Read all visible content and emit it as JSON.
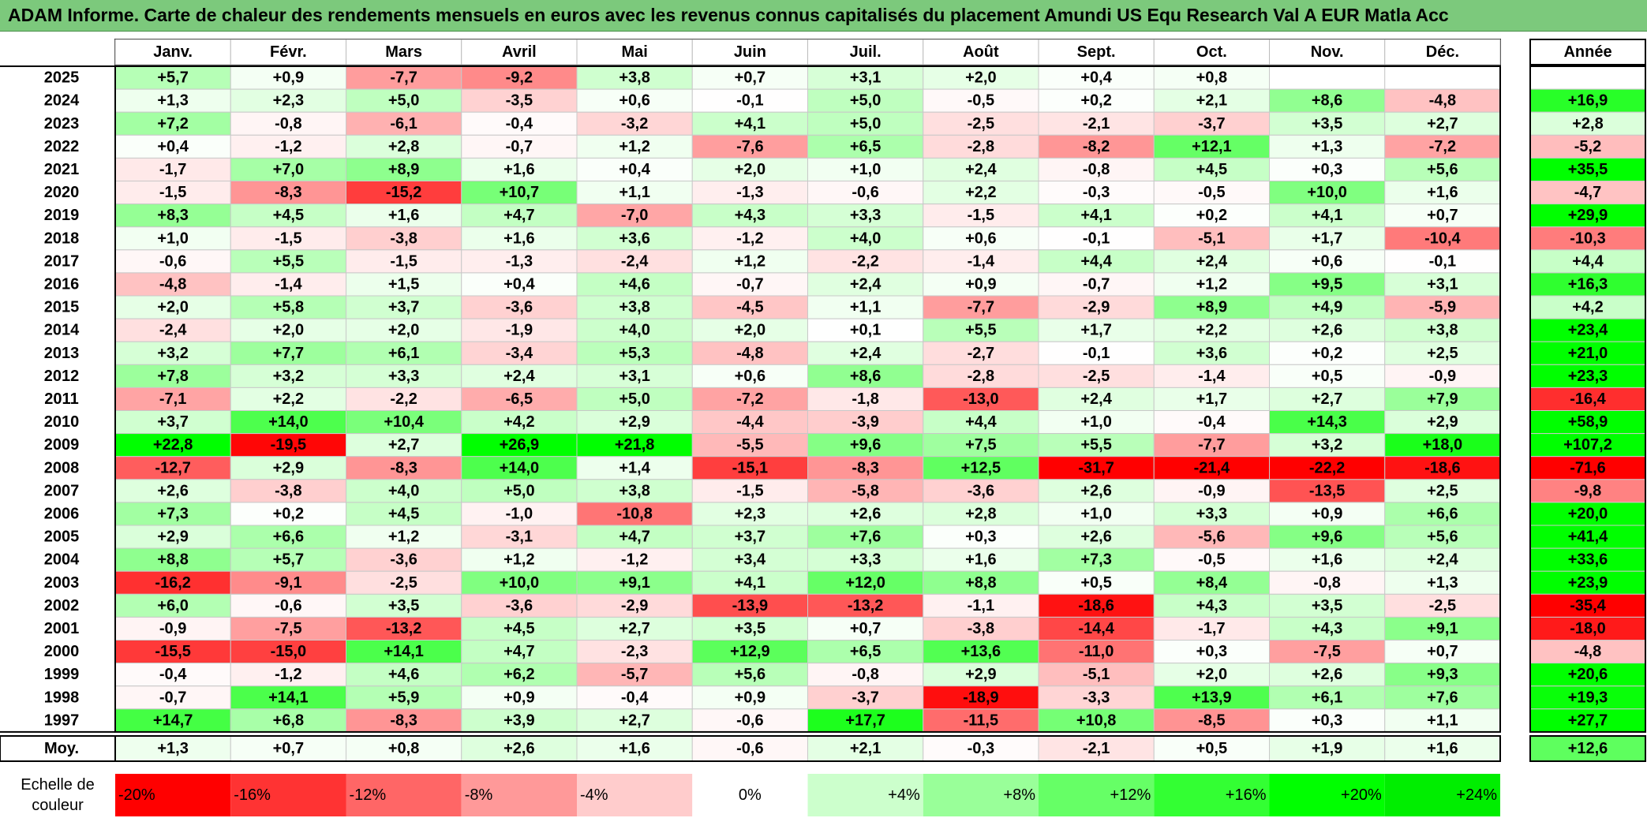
{
  "title": "ADAM Informe. Carte de chaleur des rendements mensuels en euros avec les revenus connus capitalisés du placement Amundi US Equ Research Val A EUR Matla Acc",
  "chart_data": {
    "type": "heatmap",
    "months": [
      "Janv.",
      "Févr.",
      "Mars",
      "Avril",
      "Mai",
      "Juin",
      "Juil.",
      "Août",
      "Sept.",
      "Oct.",
      "Nov.",
      "Déc."
    ],
    "year_header": "Année",
    "rows": [
      {
        "year": "2025",
        "values": [
          "+5,7",
          "+0,9",
          "-7,7",
          "-9,2",
          "+3,8",
          "+0,7",
          "+3,1",
          "+2,0",
          "+0,4",
          "+0,8",
          "",
          ""
        ],
        "annual": ""
      },
      {
        "year": "2024",
        "values": [
          "+1,3",
          "+2,3",
          "+5,0",
          "-3,5",
          "+0,6",
          "-0,1",
          "+5,0",
          "-0,5",
          "+0,2",
          "+2,1",
          "+8,6",
          "-4,8"
        ],
        "annual": "+16,9"
      },
      {
        "year": "2023",
        "values": [
          "+7,2",
          "-0,8",
          "-6,1",
          "-0,4",
          "-3,2",
          "+4,1",
          "+5,0",
          "-2,5",
          "-2,1",
          "-3,7",
          "+3,5",
          "+2,7"
        ],
        "annual": "+2,8"
      },
      {
        "year": "2022",
        "values": [
          "+0,4",
          "-1,2",
          "+2,8",
          "-0,7",
          "+1,2",
          "-7,6",
          "+6,5",
          "-2,8",
          "-8,2",
          "+12,1",
          "+1,3",
          "-7,2"
        ],
        "annual": "-5,2"
      },
      {
        "year": "2021",
        "values": [
          "-1,7",
          "+7,0",
          "+8,9",
          "+1,6",
          "+0,4",
          "+2,0",
          "+1,0",
          "+2,4",
          "-0,8",
          "+4,5",
          "+0,3",
          "+5,6"
        ],
        "annual": "+35,5"
      },
      {
        "year": "2020",
        "values": [
          "-1,5",
          "-8,3",
          "-15,2",
          "+10,7",
          "+1,1",
          "-1,3",
          "-0,6",
          "+2,2",
          "-0,3",
          "-0,5",
          "+10,0",
          "+1,6"
        ],
        "annual": "-4,7"
      },
      {
        "year": "2019",
        "values": [
          "+8,3",
          "+4,5",
          "+1,6",
          "+4,7",
          "-7,0",
          "+4,3",
          "+3,3",
          "-1,5",
          "+4,1",
          "+0,2",
          "+4,1",
          "+0,7"
        ],
        "annual": "+29,9"
      },
      {
        "year": "2018",
        "values": [
          "+1,0",
          "-1,5",
          "-3,8",
          "+1,6",
          "+3,6",
          "-1,2",
          "+4,0",
          "+0,6",
          "-0,1",
          "-5,1",
          "+1,7",
          "-10,4"
        ],
        "annual": "-10,3"
      },
      {
        "year": "2017",
        "values": [
          "-0,6",
          "+5,5",
          "-1,5",
          "-1,3",
          "-2,4",
          "+1,2",
          "-2,2",
          "-1,4",
          "+4,4",
          "+2,4",
          "+0,6",
          "-0,1"
        ],
        "annual": "+4,4"
      },
      {
        "year": "2016",
        "values": [
          "-4,8",
          "-1,4",
          "+1,5",
          "+0,4",
          "+4,6",
          "-0,7",
          "+2,4",
          "+0,9",
          "-0,7",
          "+1,2",
          "+9,5",
          "+3,1"
        ],
        "annual": "+16,3"
      },
      {
        "year": "2015",
        "values": [
          "+2,0",
          "+5,8",
          "+3,7",
          "-3,6",
          "+3,8",
          "-4,5",
          "+1,1",
          "-7,7",
          "-2,9",
          "+8,9",
          "+4,9",
          "-5,9"
        ],
        "annual": "+4,2"
      },
      {
        "year": "2014",
        "values": [
          "-2,4",
          "+2,0",
          "+2,0",
          "-1,9",
          "+4,0",
          "+2,0",
          "+0,1",
          "+5,5",
          "+1,7",
          "+2,2",
          "+2,6",
          "+3,8"
        ],
        "annual": "+23,4"
      },
      {
        "year": "2013",
        "values": [
          "+3,2",
          "+7,7",
          "+6,1",
          "-3,4",
          "+5,3",
          "-4,8",
          "+2,4",
          "-2,7",
          "-0,1",
          "+3,6",
          "+0,2",
          "+2,5"
        ],
        "annual": "+21,0"
      },
      {
        "year": "2012",
        "values": [
          "+7,8",
          "+3,2",
          "+3,3",
          "+2,4",
          "+3,1",
          "+0,6",
          "+8,6",
          "-2,8",
          "-2,5",
          "-1,4",
          "+0,5",
          "-0,9"
        ],
        "annual": "+23,3"
      },
      {
        "year": "2011",
        "values": [
          "-7,1",
          "+2,2",
          "-2,2",
          "-6,5",
          "+5,0",
          "-7,2",
          "-1,8",
          "-13,0",
          "+2,4",
          "+1,7",
          "+2,7",
          "+7,9"
        ],
        "annual": "-16,4"
      },
      {
        "year": "2010",
        "values": [
          "+3,7",
          "+14,0",
          "+10,4",
          "+4,2",
          "+2,9",
          "-4,4",
          "-3,9",
          "+4,4",
          "+1,0",
          "-0,4",
          "+14,3",
          "+2,9"
        ],
        "annual": "+58,9"
      },
      {
        "year": "2009",
        "values": [
          "+22,8",
          "-19,5",
          "+2,7",
          "+26,9",
          "+21,8",
          "-5,5",
          "+9,6",
          "+7,5",
          "+5,5",
          "-7,7",
          "+3,2",
          "+18,0"
        ],
        "annual": "+107,2"
      },
      {
        "year": "2008",
        "values": [
          "-12,7",
          "+2,9",
          "-8,3",
          "+14,0",
          "+1,4",
          "-15,1",
          "-8,3",
          "+12,5",
          "-31,7",
          "-21,4",
          "-22,2",
          "-18,6"
        ],
        "annual": "-71,6"
      },
      {
        "year": "2007",
        "values": [
          "+2,6",
          "-3,8",
          "+4,0",
          "+5,0",
          "+3,8",
          "-1,5",
          "-5,8",
          "-3,6",
          "+2,6",
          "-0,9",
          "-13,5",
          "+2,5"
        ],
        "annual": "-9,8"
      },
      {
        "year": "2006",
        "values": [
          "+7,3",
          "+0,2",
          "+4,5",
          "-1,0",
          "-10,8",
          "+2,3",
          "+2,6",
          "+2,8",
          "+1,0",
          "+3,3",
          "+0,9",
          "+6,6"
        ],
        "annual": "+20,0"
      },
      {
        "year": "2005",
        "values": [
          "+2,9",
          "+6,6",
          "+1,2",
          "-3,1",
          "+4,7",
          "+3,7",
          "+7,6",
          "+0,3",
          "+2,6",
          "-5,6",
          "+9,6",
          "+5,6"
        ],
        "annual": "+41,4"
      },
      {
        "year": "2004",
        "values": [
          "+8,8",
          "+5,7",
          "-3,6",
          "+1,2",
          "-1,2",
          "+3,4",
          "+3,3",
          "+1,6",
          "+7,3",
          "-0,5",
          "+1,6",
          "+2,4"
        ],
        "annual": "+33,6"
      },
      {
        "year": "2003",
        "values": [
          "-16,2",
          "-9,1",
          "-2,5",
          "+10,0",
          "+9,1",
          "+4,1",
          "+12,0",
          "+8,8",
          "+0,5",
          "+8,4",
          "-0,8",
          "+1,3"
        ],
        "annual": "+23,9"
      },
      {
        "year": "2002",
        "values": [
          "+6,0",
          "-0,6",
          "+3,5",
          "-3,6",
          "-2,9",
          "-13,9",
          "-13,2",
          "-1,1",
          "-18,6",
          "+4,3",
          "+3,5",
          "-2,5"
        ],
        "annual": "-35,4"
      },
      {
        "year": "2001",
        "values": [
          "-0,9",
          "-7,5",
          "-13,2",
          "+4,5",
          "+2,7",
          "+3,5",
          "+0,7",
          "-3,8",
          "-14,4",
          "-1,7",
          "+4,3",
          "+9,1"
        ],
        "annual": "-18,0"
      },
      {
        "year": "2000",
        "values": [
          "-15,5",
          "-15,0",
          "+14,1",
          "+4,7",
          "-2,3",
          "+12,9",
          "+6,5",
          "+13,6",
          "-11,0",
          "+0,3",
          "-7,5",
          "+0,7"
        ],
        "annual": "-4,8"
      },
      {
        "year": "1999",
        "values": [
          "-0,4",
          "-1,2",
          "+4,6",
          "+6,2",
          "-5,7",
          "+5,6",
          "-0,8",
          "+2,9",
          "-5,1",
          "+2,0",
          "+2,6",
          "+9,3"
        ],
        "annual": "+20,6"
      },
      {
        "year": "1998",
        "values": [
          "-0,7",
          "+14,1",
          "+5,9",
          "+0,9",
          "-0,4",
          "+0,9",
          "-3,7",
          "-18,9",
          "-3,3",
          "+13,9",
          "+6,1",
          "+7,6"
        ],
        "annual": "+19,3"
      },
      {
        "year": "1997",
        "values": [
          "+14,7",
          "+6,8",
          "-8,3",
          "+3,9",
          "+2,7",
          "-0,6",
          "+17,7",
          "-11,5",
          "+10,8",
          "-8,5",
          "+0,3",
          "+1,1"
        ],
        "annual": "+27,7"
      }
    ],
    "average": {
      "label": "Moy.",
      "values": [
        "+1,3",
        "+0,7",
        "+0,8",
        "+2,6",
        "+1,6",
        "-0,6",
        "+2,1",
        "-0,3",
        "-2,1",
        "+0,5",
        "+1,9",
        "+1,6"
      ],
      "annual": "+12,6"
    },
    "scale": {
      "label_line1": "Echelle de",
      "label_line2": "couleur",
      "items": [
        {
          "label": "-20%",
          "value": -20,
          "color": "#ff0000"
        },
        {
          "label": "-16%",
          "value": -16,
          "color": "#ff3333"
        },
        {
          "label": "-12%",
          "value": -12,
          "color": "#ff6666"
        },
        {
          "label": "-8%",
          "value": -8,
          "color": "#ff9999"
        },
        {
          "label": "-4%",
          "value": -4,
          "color": "#ffcccc"
        },
        {
          "label": "0%",
          "value": 0,
          "color": "#ffffff"
        },
        {
          "label": "+4%",
          "value": 4,
          "color": "#ccffcc"
        },
        {
          "label": "+8%",
          "value": 8,
          "color": "#99ff99"
        },
        {
          "label": "+12%",
          "value": 12,
          "color": "#66ff66"
        },
        {
          "label": "+16%",
          "value": 16,
          "color": "#33ff33"
        },
        {
          "label": "+20%",
          "value": 20,
          "color": "#00ff00"
        },
        {
          "label": "+24%",
          "value": 24,
          "color": "#00ee00"
        }
      ]
    }
  }
}
